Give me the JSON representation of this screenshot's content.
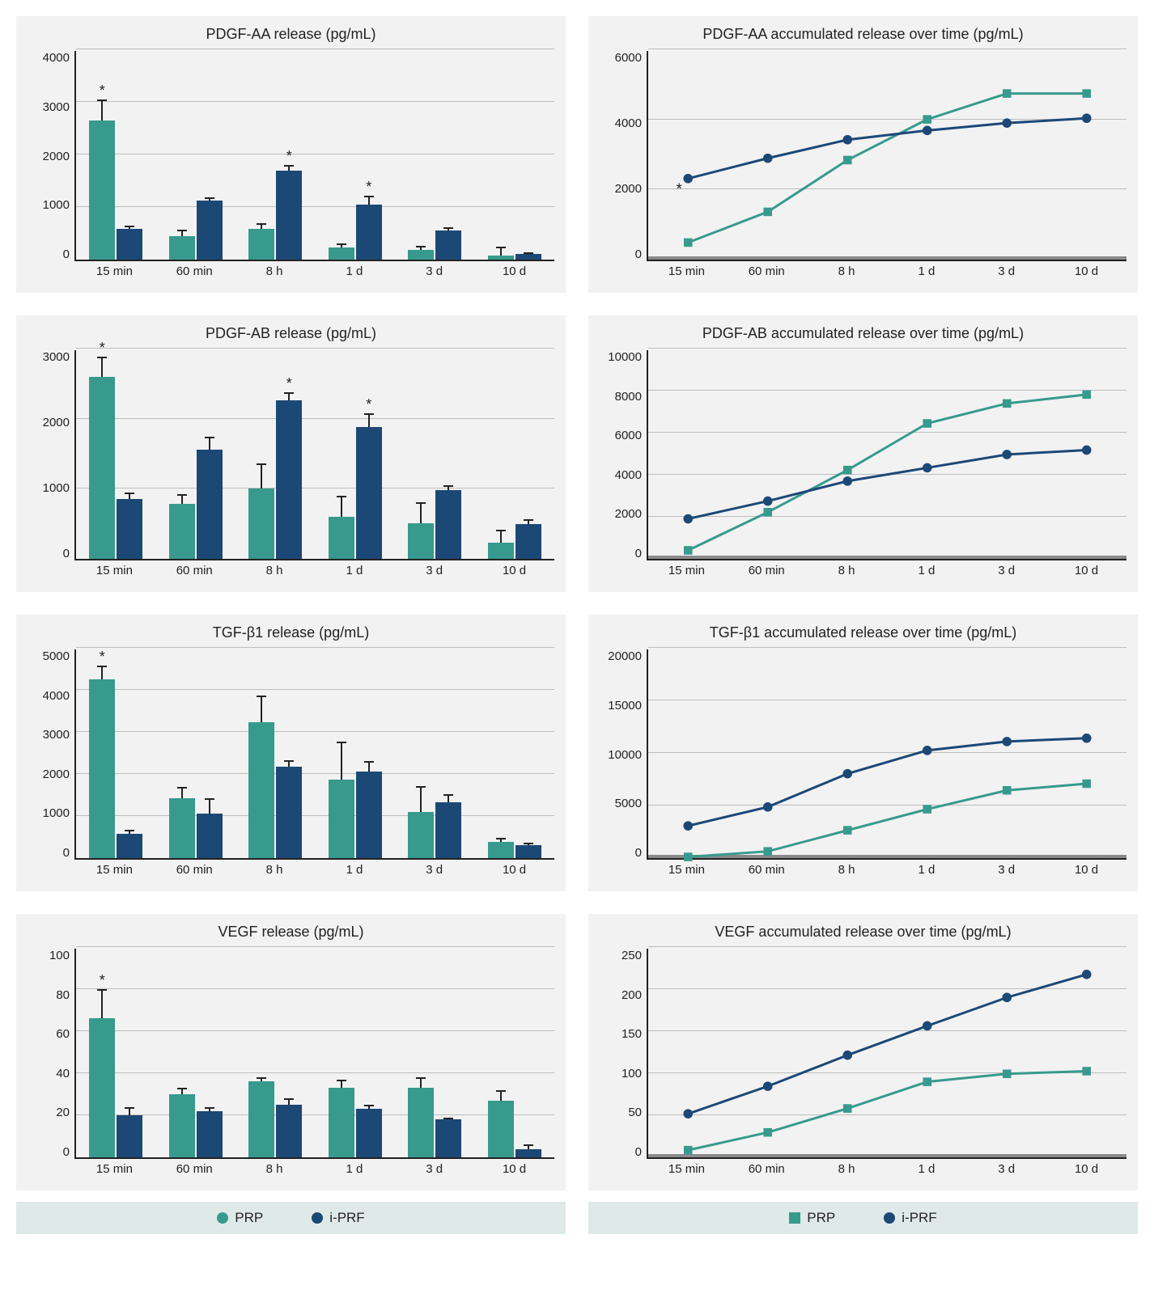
{
  "colors": {
    "prp": "#379a8d",
    "iprf": "#1c4876",
    "panel_bg": "#f2f2f2",
    "legend_bg": "#dfe9e8",
    "grid": "#bdbdbd",
    "axis": "#222222",
    "text": "#222222"
  },
  "x_categories": [
    "15 min",
    "60 min",
    "8 h",
    "1 d",
    "3 d",
    "10 d"
  ],
  "legend_left": {
    "prp": "PRP",
    "iprf": "i-PRF",
    "prp_marker": "circle",
    "iprf_marker": "circle"
  },
  "legend_right": {
    "prp": "PRP",
    "iprf": "i-PRF",
    "prp_marker": "square",
    "iprf_marker": "circle"
  },
  "rows": [
    {
      "bar": {
        "title": "PDGF-AA release (pg/mL)",
        "ymax": 4000,
        "ytick_step": 1000,
        "prp": {
          "values": [
            2650,
            450,
            580,
            230,
            180,
            80
          ],
          "err": [
            400,
            120,
            120,
            80,
            80,
            170
          ]
        },
        "iprf": {
          "values": [
            580,
            1130,
            1700,
            1050,
            560,
            110
          ],
          "err": [
            70,
            60,
            100,
            170,
            60,
            30
          ]
        },
        "sig": [
          "prp",
          null,
          "iprf",
          "iprf",
          null,
          null
        ]
      },
      "line": {
        "title": "PDGF-AA accumulated release over time (pg/mL)",
        "ymax": 6000,
        "ytick_step": 2000,
        "prp": [
          820,
          1650,
          3050,
          4150,
          4850,
          4850
        ],
        "iprf": [
          2550,
          3100,
          3600,
          3850,
          4050,
          4180
        ],
        "sig_points": [
          0
        ]
      }
    },
    {
      "bar": {
        "title": "PDGF-AB release (pg/mL)",
        "ymax": 3000,
        "ytick_step": 1000,
        "prp": {
          "values": [
            2600,
            780,
            1000,
            600,
            510,
            230
          ],
          "err": [
            280,
            140,
            360,
            300,
            300,
            180
          ]
        },
        "iprf": {
          "values": [
            850,
            1560,
            2260,
            1880,
            980,
            500
          ],
          "err": [
            100,
            180,
            120,
            200,
            70,
            60
          ]
        },
        "sig": [
          "prp",
          null,
          "iprf",
          "iprf",
          null,
          null
        ]
      },
      "line": {
        "title": "PDGF-AB accumulated release over time (pg/mL)",
        "ymax": 10000,
        "ytick_step": 2000,
        "prp": [
          980,
          2700,
          4600,
          6700,
          7600,
          8000
        ],
        "iprf": [
          2400,
          3200,
          4100,
          4700,
          5300,
          5500
        ],
        "sig_points": []
      }
    },
    {
      "bar": {
        "title": "TGF-β1 release (pg/mL)",
        "ymax": 5000,
        "ytick_step": 1000,
        "prp": {
          "values": [
            4250,
            1430,
            3240,
            1870,
            1100,
            390
          ],
          "err": [
            320,
            260,
            630,
            900,
            620,
            90
          ]
        },
        "iprf": {
          "values": [
            570,
            1050,
            2180,
            2050,
            1320,
            300
          ],
          "err": [
            110,
            380,
            140,
            260,
            200,
            70
          ]
        },
        "sig": [
          "prp",
          null,
          null,
          null,
          null,
          null
        ]
      },
      "line": {
        "title": "TGF-β1 accumulated release over time (pg/mL)",
        "ymax": 20000,
        "ytick_step": 5000,
        "prp": [
          1300,
          1800,
          3700,
          5600,
          7300,
          7900
        ],
        "iprf": [
          4100,
          5800,
          8800,
          10900,
          11700,
          12000
        ],
        "sig_points": []
      }
    },
    {
      "bar": {
        "title": "VEGF release (pg/mL)",
        "ymax": 100,
        "ytick_step": 20,
        "prp": {
          "values": [
            66,
            30,
            36,
            33,
            33,
            27
          ],
          "err": [
            14,
            3,
            2,
            4,
            5,
            5
          ]
        },
        "iprf": {
          "values": [
            20,
            22,
            25,
            23,
            18,
            4
          ],
          "err": [
            4,
            2,
            3,
            2,
            1,
            2
          ]
        },
        "sig": [
          "prp",
          null,
          null,
          null,
          null,
          null
        ]
      },
      "line": {
        "title": "VEGF accumulated release over time (pg/mL)",
        "ymax": 250,
        "ytick_step": 50,
        "prp": [
          23,
          43,
          70,
          100,
          109,
          112
        ],
        "iprf": [
          64,
          95,
          130,
          163,
          195,
          221
        ],
        "sig_points": []
      }
    }
  ]
}
